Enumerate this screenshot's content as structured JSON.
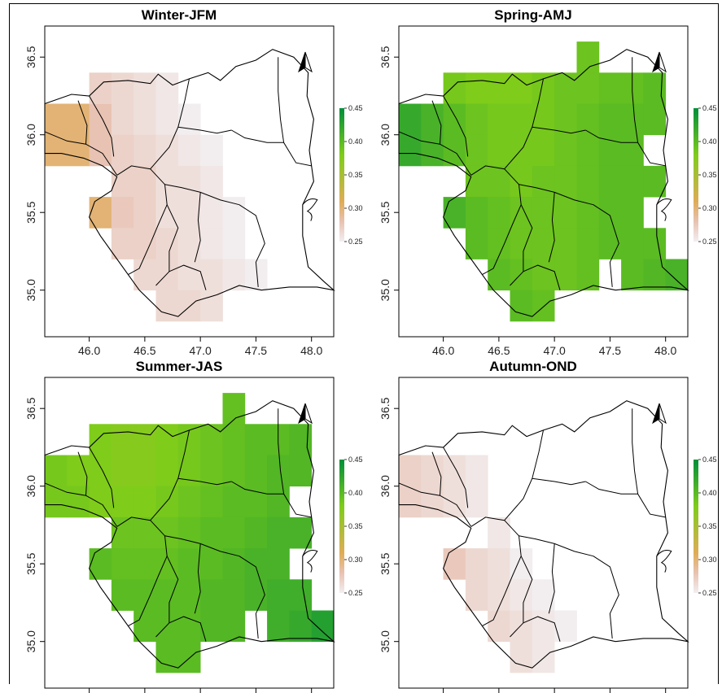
{
  "colors": {
    "scale": [
      "#f2eef0",
      "#e8c2b2",
      "#dfac55",
      "#7fcc1a",
      "#008f3a"
    ],
    "border": "#000000"
  },
  "icons": {
    "north_arrow": "north-arrow-icon"
  },
  "colorbar": {
    "ticks": [
      "0.45",
      "0.40",
      "0.35",
      "0.30",
      "0.25"
    ],
    "min": 0.25,
    "max": 0.45
  },
  "axes": {
    "x_ticks": [
      "46.0",
      "46.5",
      "47.0",
      "47.5",
      "48.0"
    ],
    "y_ticks": [
      "35.0",
      "35.5",
      "36.0",
      "36.5"
    ],
    "x_range": [
      45.6,
      48.2
    ],
    "y_range": [
      34.7,
      36.7
    ]
  },
  "chart_data": [
    {
      "type": "heatmap",
      "title": "Winter-JFM",
      "cell_size_deg": 0.2,
      "cells": [
        [
          45.6,
          36.0,
          0.3
        ],
        [
          45.8,
          36.0,
          0.3
        ],
        [
          46.0,
          36.0,
          0.28
        ],
        [
          45.6,
          35.8,
          0.3
        ],
        [
          45.8,
          35.8,
          0.3
        ],
        [
          46.0,
          35.8,
          0.28
        ],
        [
          46.0,
          36.2,
          0.27
        ],
        [
          46.2,
          36.2,
          0.265
        ],
        [
          46.4,
          36.2,
          0.26
        ],
        [
          46.6,
          36.2,
          0.255
        ],
        [
          46.2,
          36.0,
          0.265
        ],
        [
          46.4,
          36.0,
          0.26
        ],
        [
          46.6,
          36.0,
          0.255
        ],
        [
          46.8,
          36.0,
          0.25
        ],
        [
          46.2,
          35.8,
          0.27
        ],
        [
          46.4,
          35.8,
          0.265
        ],
        [
          46.6,
          35.8,
          0.26
        ],
        [
          46.8,
          35.8,
          0.255
        ],
        [
          47.0,
          35.8,
          0.25
        ],
        [
          46.2,
          35.6,
          0.27
        ],
        [
          46.4,
          35.6,
          0.27
        ],
        [
          46.6,
          35.6,
          0.26
        ],
        [
          46.8,
          35.6,
          0.26
        ],
        [
          47.0,
          35.6,
          0.255
        ],
        [
          46.0,
          35.4,
          0.3
        ],
        [
          46.2,
          35.4,
          0.275
        ],
        [
          46.4,
          35.4,
          0.27
        ],
        [
          46.6,
          35.4,
          0.26
        ],
        [
          46.8,
          35.4,
          0.26
        ],
        [
          47.0,
          35.4,
          0.255
        ],
        [
          47.2,
          35.4,
          0.25
        ],
        [
          46.2,
          35.2,
          0.27
        ],
        [
          46.4,
          35.2,
          0.27
        ],
        [
          46.6,
          35.2,
          0.265
        ],
        [
          46.8,
          35.2,
          0.26
        ],
        [
          47.0,
          35.2,
          0.255
        ],
        [
          47.2,
          35.2,
          0.25
        ],
        [
          46.4,
          35.0,
          0.265
        ],
        [
          46.6,
          35.0,
          0.265
        ],
        [
          46.8,
          35.0,
          0.26
        ],
        [
          47.0,
          35.0,
          0.26
        ],
        [
          47.2,
          35.0,
          0.255
        ],
        [
          47.4,
          35.0,
          0.25
        ],
        [
          46.6,
          34.8,
          0.265
        ],
        [
          46.8,
          34.8,
          0.265
        ],
        [
          47.0,
          34.8,
          0.26
        ]
      ]
    },
    {
      "type": "heatmap",
      "title": "Spring-AMJ",
      "cell_size_deg": 0.2,
      "cells": [
        [
          47.2,
          36.4,
          0.39
        ],
        [
          46.0,
          36.2,
          0.385
        ],
        [
          46.2,
          36.2,
          0.38
        ],
        [
          46.4,
          36.2,
          0.38
        ],
        [
          46.6,
          36.2,
          0.38
        ],
        [
          46.8,
          36.2,
          0.385
        ],
        [
          47.0,
          36.2,
          0.39
        ],
        [
          47.2,
          36.2,
          0.39
        ],
        [
          47.4,
          36.2,
          0.395
        ],
        [
          47.6,
          36.2,
          0.395
        ],
        [
          47.8,
          36.2,
          0.4
        ],
        [
          45.6,
          36.0,
          0.42
        ],
        [
          45.8,
          36.0,
          0.41
        ],
        [
          46.0,
          36.0,
          0.4
        ],
        [
          46.2,
          36.0,
          0.39
        ],
        [
          46.4,
          36.0,
          0.385
        ],
        [
          46.6,
          36.0,
          0.385
        ],
        [
          46.8,
          36.0,
          0.385
        ],
        [
          47.0,
          36.0,
          0.39
        ],
        [
          47.2,
          36.0,
          0.395
        ],
        [
          47.4,
          36.0,
          0.4
        ],
        [
          47.6,
          36.0,
          0.4
        ],
        [
          47.8,
          36.0,
          0.4
        ],
        [
          45.6,
          35.8,
          0.42
        ],
        [
          45.8,
          35.8,
          0.41
        ],
        [
          46.0,
          35.8,
          0.4
        ],
        [
          46.2,
          35.8,
          0.39
        ],
        [
          46.4,
          35.8,
          0.385
        ],
        [
          46.6,
          35.8,
          0.385
        ],
        [
          46.8,
          35.8,
          0.385
        ],
        [
          47.0,
          35.8,
          0.39
        ],
        [
          47.2,
          35.8,
          0.395
        ],
        [
          47.4,
          35.8,
          0.4
        ],
        [
          47.6,
          35.8,
          0.4
        ],
        [
          46.2,
          35.6,
          0.39
        ],
        [
          46.4,
          35.6,
          0.39
        ],
        [
          46.6,
          35.6,
          0.385
        ],
        [
          46.8,
          35.6,
          0.39
        ],
        [
          47.0,
          35.6,
          0.39
        ],
        [
          47.2,
          35.6,
          0.395
        ],
        [
          47.4,
          35.6,
          0.4
        ],
        [
          47.6,
          35.6,
          0.4
        ],
        [
          47.8,
          35.6,
          0.4
        ],
        [
          46.0,
          35.4,
          0.41
        ],
        [
          46.2,
          35.4,
          0.4
        ],
        [
          46.4,
          35.4,
          0.395
        ],
        [
          46.6,
          35.4,
          0.39
        ],
        [
          46.8,
          35.4,
          0.39
        ],
        [
          47.0,
          35.4,
          0.39
        ],
        [
          47.2,
          35.4,
          0.395
        ],
        [
          47.4,
          35.4,
          0.4
        ],
        [
          47.6,
          35.4,
          0.4
        ],
        [
          46.2,
          35.2,
          0.4
        ],
        [
          46.4,
          35.2,
          0.395
        ],
        [
          46.6,
          35.2,
          0.39
        ],
        [
          46.8,
          35.2,
          0.39
        ],
        [
          47.0,
          35.2,
          0.39
        ],
        [
          47.2,
          35.2,
          0.395
        ],
        [
          47.4,
          35.2,
          0.4
        ],
        [
          47.6,
          35.2,
          0.4
        ],
        [
          47.8,
          35.2,
          0.4
        ],
        [
          46.4,
          35.0,
          0.4
        ],
        [
          46.6,
          35.0,
          0.395
        ],
        [
          46.8,
          35.0,
          0.39
        ],
        [
          47.0,
          35.0,
          0.39
        ],
        [
          47.2,
          35.0,
          0.395
        ],
        [
          47.6,
          35.0,
          0.4
        ],
        [
          47.8,
          35.0,
          0.405
        ],
        [
          48.0,
          35.0,
          0.41
        ],
        [
          46.6,
          34.8,
          0.4
        ],
        [
          46.8,
          34.8,
          0.395
        ]
      ]
    },
    {
      "type": "heatmap",
      "title": "Summer-JAS",
      "cell_size_deg": 0.2,
      "cells": [
        [
          47.2,
          36.4,
          0.395
        ],
        [
          46.0,
          36.2,
          0.38
        ],
        [
          46.2,
          36.2,
          0.375
        ],
        [
          46.4,
          36.2,
          0.375
        ],
        [
          46.6,
          36.2,
          0.38
        ],
        [
          46.8,
          36.2,
          0.385
        ],
        [
          47.0,
          36.2,
          0.39
        ],
        [
          47.2,
          36.2,
          0.395
        ],
        [
          47.4,
          36.2,
          0.4
        ],
        [
          47.6,
          36.2,
          0.4
        ],
        [
          47.8,
          36.2,
          0.405
        ],
        [
          45.6,
          36.0,
          0.385
        ],
        [
          45.8,
          36.0,
          0.38
        ],
        [
          46.0,
          36.0,
          0.38
        ],
        [
          46.2,
          36.0,
          0.375
        ],
        [
          46.4,
          36.0,
          0.375
        ],
        [
          46.6,
          36.0,
          0.38
        ],
        [
          46.8,
          36.0,
          0.385
        ],
        [
          47.0,
          36.0,
          0.39
        ],
        [
          47.2,
          36.0,
          0.395
        ],
        [
          47.4,
          36.0,
          0.4
        ],
        [
          47.6,
          36.0,
          0.405
        ],
        [
          47.8,
          36.0,
          0.405
        ],
        [
          45.6,
          35.8,
          0.385
        ],
        [
          45.8,
          35.8,
          0.385
        ],
        [
          46.0,
          35.8,
          0.38
        ],
        [
          46.2,
          35.8,
          0.38
        ],
        [
          46.4,
          35.8,
          0.38
        ],
        [
          46.6,
          35.8,
          0.385
        ],
        [
          46.8,
          35.8,
          0.39
        ],
        [
          47.0,
          35.8,
          0.395
        ],
        [
          47.2,
          35.8,
          0.4
        ],
        [
          47.4,
          35.8,
          0.4
        ],
        [
          47.6,
          35.8,
          0.405
        ],
        [
          46.2,
          35.6,
          0.39
        ],
        [
          46.4,
          35.6,
          0.39
        ],
        [
          46.6,
          35.6,
          0.39
        ],
        [
          46.8,
          35.6,
          0.395
        ],
        [
          47.0,
          35.6,
          0.4
        ],
        [
          47.2,
          35.6,
          0.4
        ],
        [
          47.4,
          35.6,
          0.405
        ],
        [
          47.6,
          35.6,
          0.41
        ],
        [
          47.8,
          35.6,
          0.41
        ],
        [
          46.0,
          35.4,
          0.4
        ],
        [
          46.2,
          35.4,
          0.395
        ],
        [
          46.4,
          35.4,
          0.395
        ],
        [
          46.6,
          35.4,
          0.395
        ],
        [
          46.8,
          35.4,
          0.4
        ],
        [
          47.0,
          35.4,
          0.4
        ],
        [
          47.2,
          35.4,
          0.405
        ],
        [
          47.4,
          35.4,
          0.41
        ],
        [
          47.6,
          35.4,
          0.41
        ],
        [
          46.2,
          35.2,
          0.4
        ],
        [
          46.4,
          35.2,
          0.4
        ],
        [
          46.6,
          35.2,
          0.4
        ],
        [
          46.8,
          35.2,
          0.4
        ],
        [
          47.0,
          35.2,
          0.405
        ],
        [
          47.2,
          35.2,
          0.405
        ],
        [
          47.4,
          35.2,
          0.41
        ],
        [
          47.6,
          35.2,
          0.415
        ],
        [
          47.8,
          35.2,
          0.415
        ],
        [
          46.4,
          35.0,
          0.4
        ],
        [
          46.6,
          35.0,
          0.4
        ],
        [
          46.8,
          35.0,
          0.4
        ],
        [
          47.0,
          35.0,
          0.405
        ],
        [
          47.2,
          35.0,
          0.405
        ],
        [
          47.6,
          35.0,
          0.415
        ],
        [
          47.8,
          35.0,
          0.42
        ],
        [
          48.0,
          35.0,
          0.43
        ],
        [
          46.6,
          34.8,
          0.4
        ],
        [
          46.8,
          34.8,
          0.4
        ]
      ]
    },
    {
      "type": "heatmap",
      "title": "Autumn-OND",
      "cell_size_deg": 0.2,
      "cells": [
        [
          45.6,
          36.0,
          0.27
        ],
        [
          45.8,
          36.0,
          0.265
        ],
        [
          46.0,
          36.0,
          0.26
        ],
        [
          46.2,
          36.0,
          0.255
        ],
        [
          45.6,
          35.8,
          0.27
        ],
        [
          45.8,
          35.8,
          0.265
        ],
        [
          46.0,
          35.8,
          0.26
        ],
        [
          46.2,
          35.8,
          0.255
        ],
        [
          46.4,
          35.6,
          0.255
        ],
        [
          46.0,
          35.4,
          0.275
        ],
        [
          46.2,
          35.4,
          0.265
        ],
        [
          46.4,
          35.4,
          0.26
        ],
        [
          46.6,
          35.4,
          0.25
        ],
        [
          46.2,
          35.2,
          0.265
        ],
        [
          46.4,
          35.2,
          0.26
        ],
        [
          46.6,
          35.2,
          0.255
        ],
        [
          46.8,
          35.2,
          0.25
        ],
        [
          46.4,
          35.0,
          0.265
        ],
        [
          46.6,
          35.0,
          0.26
        ],
        [
          46.8,
          35.0,
          0.255
        ],
        [
          47.0,
          35.0,
          0.25
        ],
        [
          46.6,
          34.8,
          0.26
        ],
        [
          46.8,
          34.8,
          0.255
        ]
      ]
    }
  ]
}
